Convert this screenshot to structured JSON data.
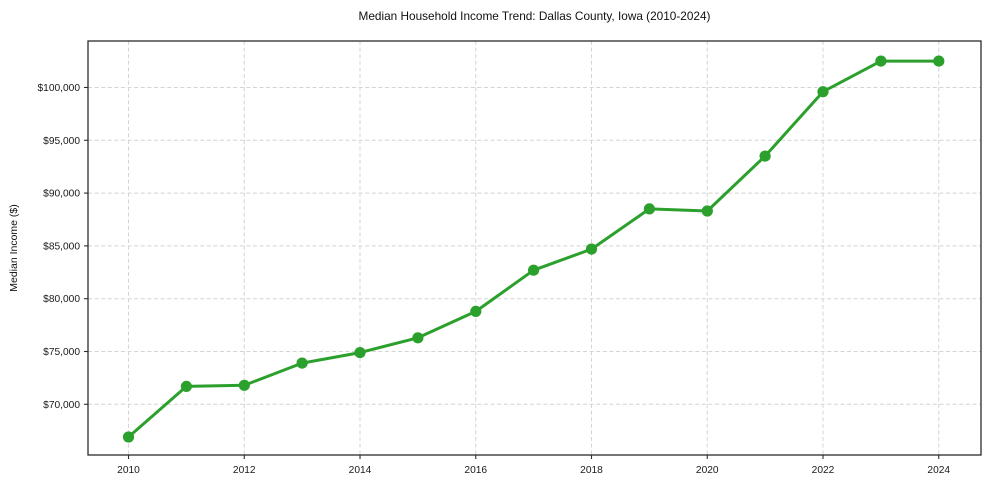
{
  "chart_data": {
    "type": "line",
    "title": "Median Household Income Trend: Dallas County, Iowa (2010-2024)",
    "xlabel": "",
    "ylabel": "Median Income ($)",
    "x": [
      2010,
      2011,
      2012,
      2013,
      2014,
      2015,
      2016,
      2017,
      2018,
      2019,
      2020,
      2021,
      2022,
      2023,
      2024
    ],
    "values": [
      66900,
      71700,
      71800,
      73900,
      74900,
      76300,
      78800,
      82700,
      84700,
      88500,
      88300,
      93500,
      99600,
      102500,
      102500
    ],
    "xtick_values": [
      2010,
      2012,
      2014,
      2016,
      2018,
      2020,
      2022,
      2024
    ],
    "xtick_labels": [
      "2010",
      "2012",
      "2014",
      "2016",
      "2018",
      "2020",
      "2022",
      "2024"
    ],
    "ytick_values": [
      70000,
      75000,
      80000,
      85000,
      90000,
      95000,
      100000
    ],
    "ytick_labels": [
      "$70,000",
      "$75,000",
      "$80,000",
      "$85,000",
      "$90,000",
      "$95,000",
      "$100,000"
    ],
    "xlim": [
      2009.3,
      2024.73
    ],
    "ylim": [
      65200,
      104400
    ],
    "grid": true,
    "grid_style": "dashed",
    "legend": false,
    "line_color": "#2ca02c",
    "marker": "filled-circle"
  },
  "style": {
    "background": "#ffffff",
    "grid_color": "#d4d4d4",
    "axis_border_color": "#2b2b2b",
    "tick_color": "#2b2b2b",
    "tick_label_color": "#1a1a1a",
    "title_color": "#111111"
  }
}
